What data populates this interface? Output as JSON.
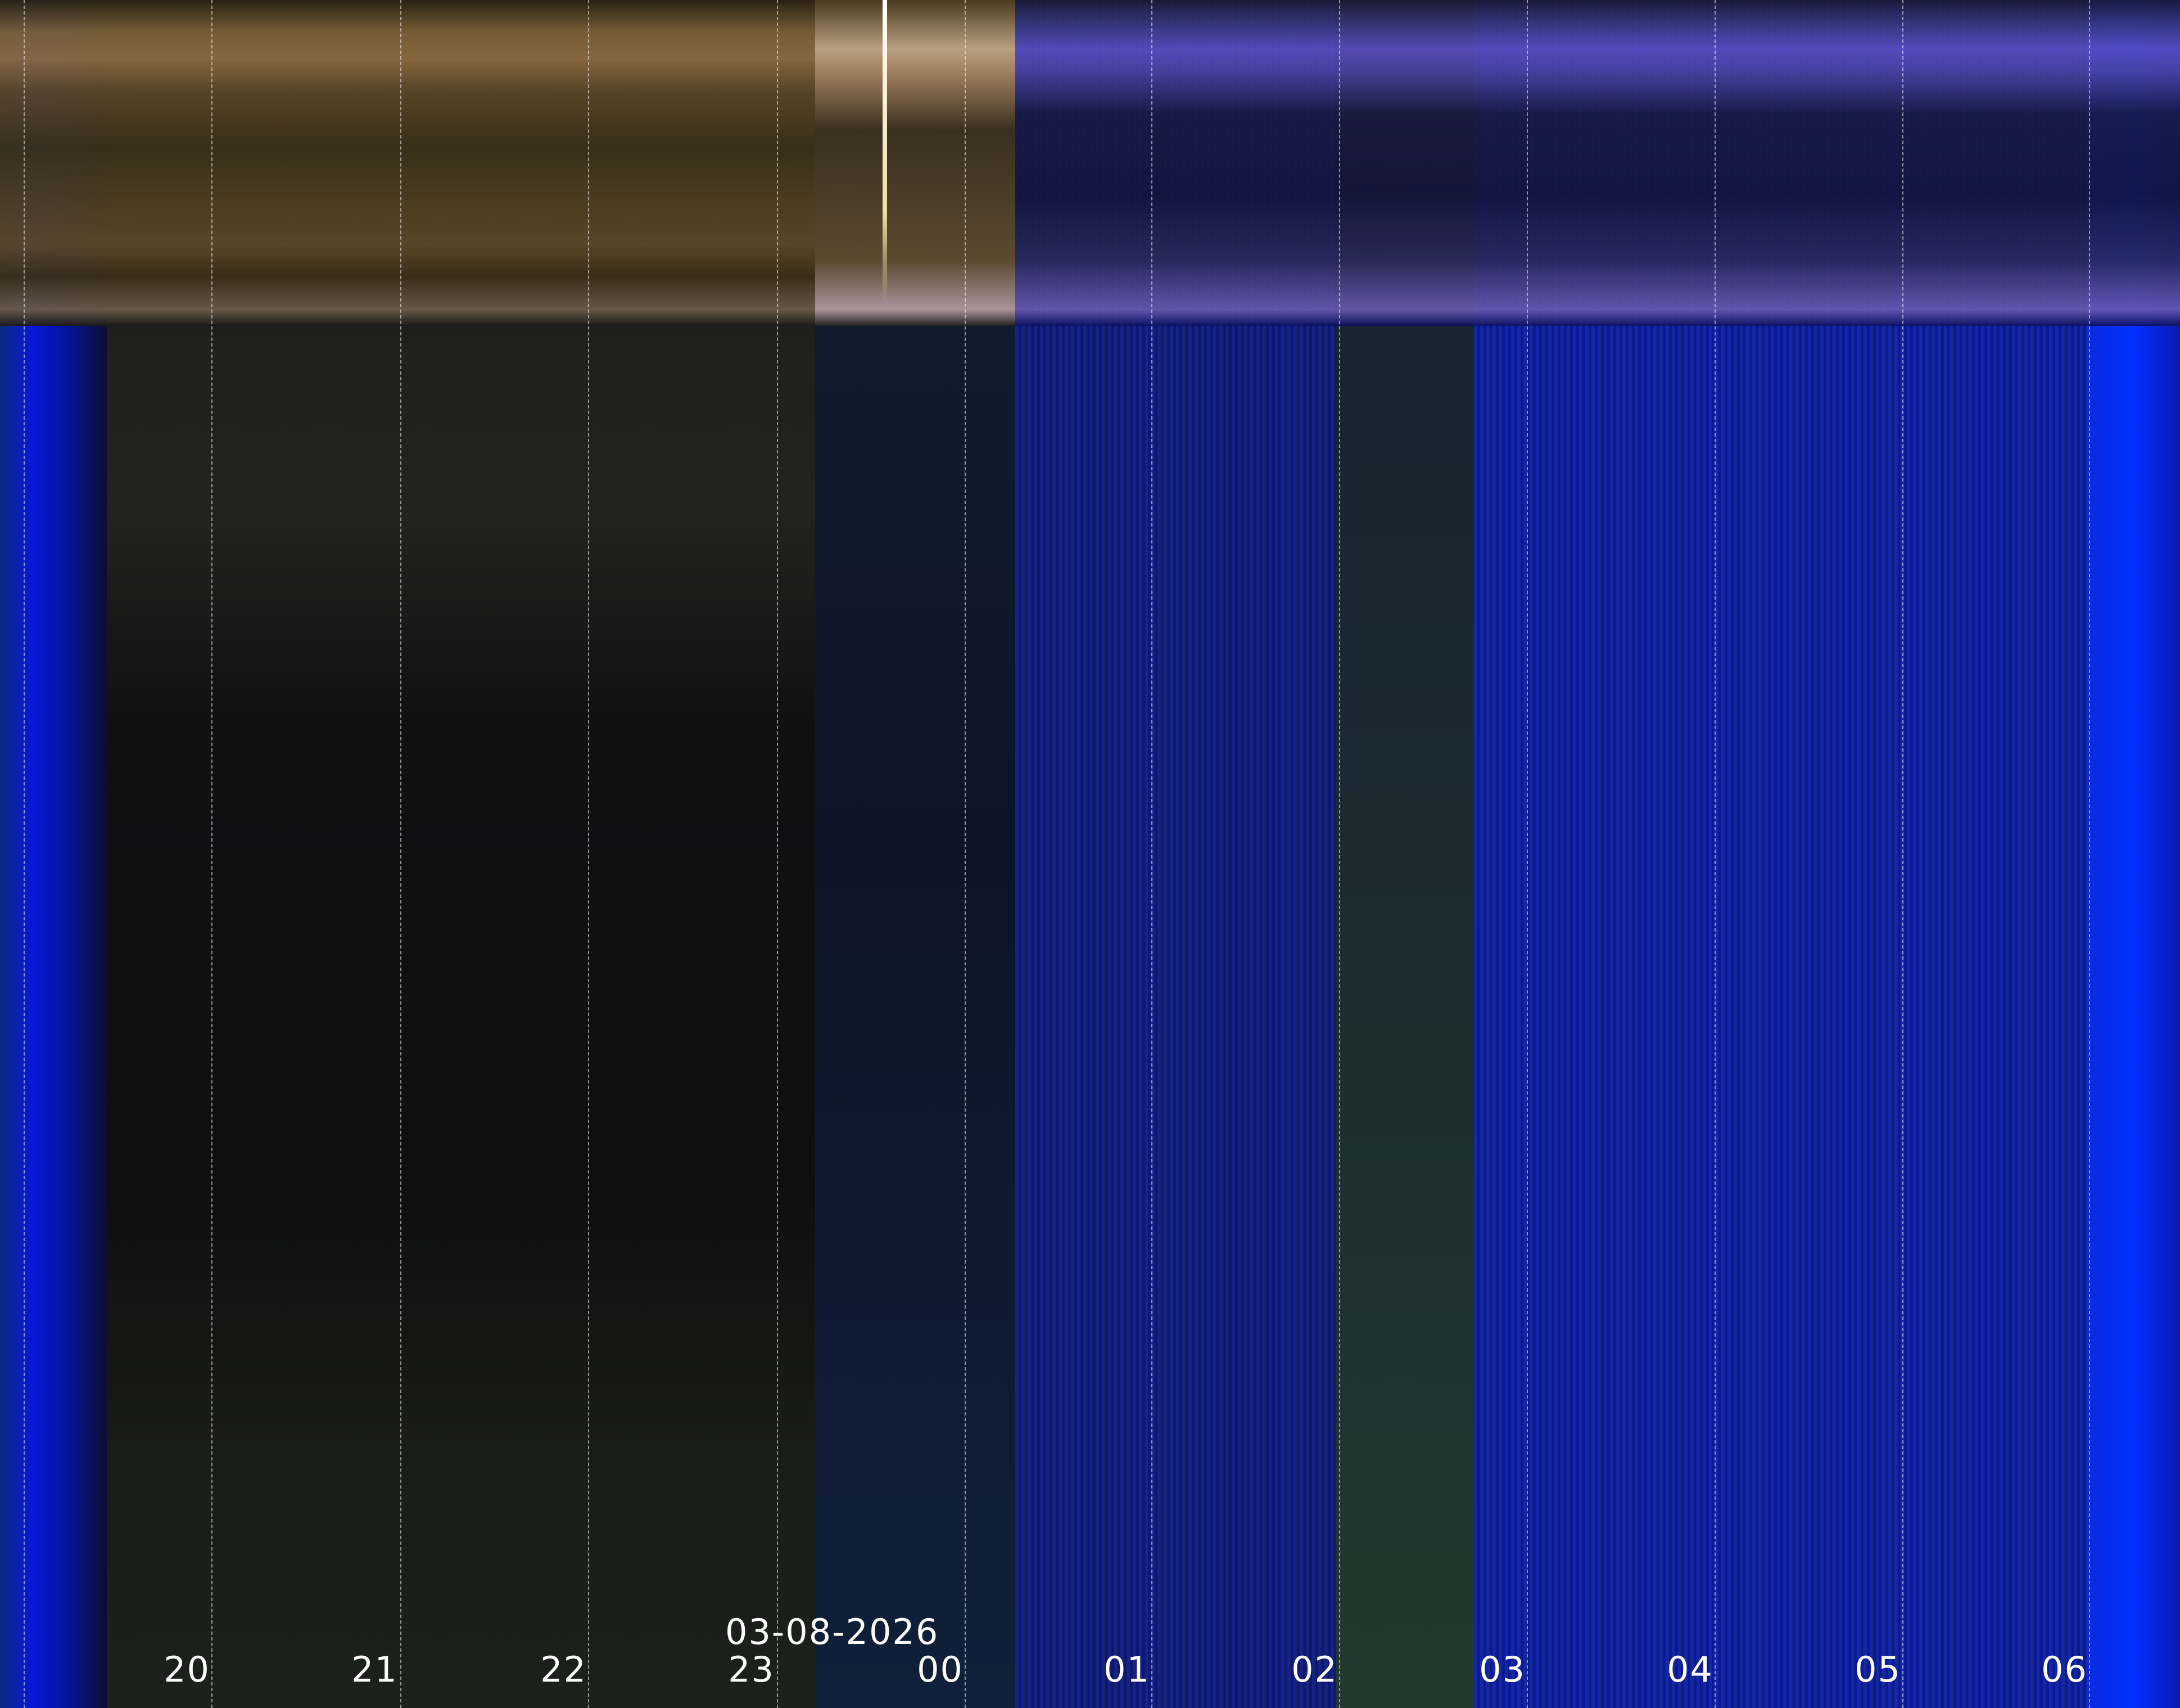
{
  "date_label": "03-08-2026",
  "hour_labels": [
    "20",
    "21",
    "22",
    "23",
    "00",
    "01",
    "02",
    "03",
    "04",
    "05",
    "06"
  ],
  "colors": {
    "twilight_blue": "#0a1cd8",
    "night_dark": "#101012",
    "top_band_gold": "#6a5530",
    "top_band_violet": "#5a4fc0",
    "deep_blue": "#0b1575",
    "bright_blue": "#0030ff"
  }
}
